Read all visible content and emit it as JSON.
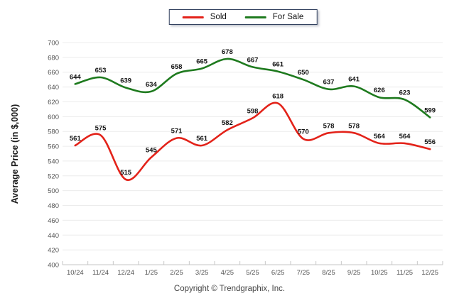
{
  "page": {
    "copyright": "Copyright © Trendgraphix, Inc."
  },
  "legend": {
    "sold_label": "Sold",
    "for_sale_label": "For Sale"
  },
  "colors": {
    "sold": "#e32219",
    "for_sale": "#1e7a1e",
    "grid": "#ececec",
    "axis": "#c6c6c6",
    "tick_label": "#555555",
    "data_label": "#111111",
    "legend_border": "#32415e"
  },
  "chart_data": {
    "type": "line",
    "title": "",
    "xlabel": "",
    "ylabel": "Average Price (in $,000)",
    "ylim": [
      400,
      700
    ],
    "ytick_step": 20,
    "grid": true,
    "legend_position": "top-center",
    "categories": [
      "10/24",
      "11/24",
      "12/24",
      "1/25",
      "2/25",
      "3/25",
      "4/25",
      "5/25",
      "6/25",
      "7/25",
      "8/25",
      "9/25",
      "10/25",
      "11/25",
      "12/25"
    ],
    "series": [
      {
        "name": "Sold",
        "color": "#e32219",
        "values": [
          561,
          575,
          515,
          545,
          571,
          561,
          582,
          598,
          618,
          570,
          578,
          578,
          564,
          564,
          556
        ]
      },
      {
        "name": "For Sale",
        "color": "#1e7a1e",
        "values": [
          644,
          653,
          639,
          634,
          658,
          665,
          678,
          667,
          661,
          650,
          637,
          641,
          626,
          623,
          599
        ]
      }
    ]
  }
}
